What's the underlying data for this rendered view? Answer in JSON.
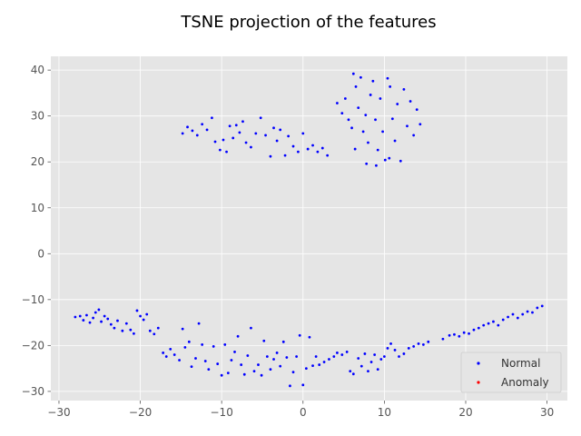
{
  "chart_data": {
    "type": "scatter",
    "title": "TSNE projection of the features",
    "xlabel": "",
    "ylabel": "",
    "xlim": [
      -31,
      32.5
    ],
    "ylim": [
      -32,
      43
    ],
    "xticks": [
      -30,
      -20,
      -10,
      0,
      10,
      20,
      30
    ],
    "yticks": [
      -30,
      -20,
      -10,
      0,
      10,
      20,
      30,
      40
    ],
    "grid": true,
    "style": "ggplot",
    "legend_position": "lower-right",
    "series": [
      {
        "name": "Normal",
        "color": "#0000ff",
        "points": [
          [
            -28,
            -13.8
          ],
          [
            -27.4,
            -13.6
          ],
          [
            -27,
            -14.5
          ],
          [
            -26.6,
            -13.4
          ],
          [
            -26.2,
            -15
          ],
          [
            -25.8,
            -14
          ],
          [
            -25.5,
            -12.8
          ],
          [
            -25.1,
            -12.2
          ],
          [
            -24.8,
            -14.8
          ],
          [
            -24.4,
            -13.6
          ],
          [
            -24,
            -14.2
          ],
          [
            -23.6,
            -15.4
          ],
          [
            -23.2,
            -16.2
          ],
          [
            -22.8,
            -14.6
          ],
          [
            -22.2,
            -16.8
          ],
          [
            -21.7,
            -15.2
          ],
          [
            -21.2,
            -16.6
          ],
          [
            -20.8,
            -17.4
          ],
          [
            -20.4,
            -12.4
          ],
          [
            -20,
            -13.6
          ],
          [
            -19.6,
            -14.4
          ],
          [
            -19.2,
            -13.2
          ],
          [
            -18.8,
            -16.8
          ],
          [
            -18.3,
            -17.5
          ],
          [
            -17.8,
            -16.2
          ],
          [
            -17.2,
            -21.6
          ],
          [
            -16.8,
            -22.4
          ],
          [
            -16.3,
            -20.8
          ],
          [
            -15.8,
            -22
          ],
          [
            -15.2,
            -23.2
          ],
          [
            -14.8,
            -16.4
          ],
          [
            -14.5,
            -20.4
          ],
          [
            -14,
            -19.2
          ],
          [
            -13.7,
            -24.6
          ],
          [
            -13.2,
            -22.8
          ],
          [
            -12.8,
            -15.2
          ],
          [
            -12.4,
            -19.8
          ],
          [
            -12,
            -23.4
          ],
          [
            -11.6,
            -25.2
          ],
          [
            -11,
            -20.2
          ],
          [
            -10.5,
            -24
          ],
          [
            -10,
            -26.5
          ],
          [
            -9.6,
            -19.8
          ],
          [
            -9.2,
            -26
          ],
          [
            -8.8,
            -23.2
          ],
          [
            -8.4,
            -21.4
          ],
          [
            -8,
            -18
          ],
          [
            -7.6,
            -24.2
          ],
          [
            -7.2,
            -26.3
          ],
          [
            -6.8,
            -22.2
          ],
          [
            -6.4,
            -16.2
          ],
          [
            -6,
            -25.6
          ],
          [
            -5.5,
            -24.2
          ],
          [
            -5.1,
            -26.5
          ],
          [
            -4.8,
            -19
          ],
          [
            -4.4,
            -22.4
          ],
          [
            -4,
            -25.2
          ],
          [
            -3.6,
            -23
          ],
          [
            -3.2,
            -21.6
          ],
          [
            -2.8,
            -24.5
          ],
          [
            -2.4,
            -19.2
          ],
          [
            -2,
            -22.6
          ],
          [
            -1.6,
            -28.8
          ],
          [
            -1.2,
            -25.8
          ],
          [
            -0.8,
            -22.4
          ],
          [
            -0.4,
            -17.8
          ],
          [
            0,
            -28.6
          ],
          [
            0.4,
            -25
          ],
          [
            0.8,
            -18.2
          ],
          [
            1.2,
            -24.4
          ],
          [
            1.6,
            -22.4
          ],
          [
            2,
            -24.2
          ],
          [
            2.6,
            -23.6
          ],
          [
            3.2,
            -23
          ],
          [
            3.8,
            -22.4
          ],
          [
            4.2,
            -21.6
          ],
          [
            4.8,
            -22
          ],
          [
            5.4,
            -21.4
          ],
          [
            5.8,
            -25.6
          ],
          [
            6.2,
            -26.2
          ],
          [
            6.8,
            -22.8
          ],
          [
            7.2,
            -24.5
          ],
          [
            7.6,
            -21.8
          ],
          [
            8,
            -25.6
          ],
          [
            8.4,
            -23.6
          ],
          [
            8.8,
            -22
          ],
          [
            9.2,
            -25.2
          ],
          [
            9.6,
            -23
          ],
          [
            10,
            -22.4
          ],
          [
            10.4,
            -20.6
          ],
          [
            10.8,
            -19.6
          ],
          [
            11.3,
            -21
          ],
          [
            11.8,
            -22.4
          ],
          [
            12.4,
            -21.8
          ],
          [
            13,
            -20.6
          ],
          [
            13.6,
            -20.2
          ],
          [
            14.2,
            -19.6
          ],
          [
            14.8,
            -19.8
          ],
          [
            15.4,
            -19.2
          ],
          [
            17.2,
            -18.6
          ],
          [
            18,
            -17.8
          ],
          [
            18.6,
            -17.6
          ],
          [
            19.2,
            -18
          ],
          [
            19.8,
            -17.2
          ],
          [
            20.4,
            -17.4
          ],
          [
            21,
            -16.6
          ],
          [
            21.6,
            -16.2
          ],
          [
            22.2,
            -15.6
          ],
          [
            22.8,
            -15.2
          ],
          [
            23.4,
            -14.8
          ],
          [
            24,
            -15.6
          ],
          [
            24.6,
            -14.4
          ],
          [
            25.2,
            -13.8
          ],
          [
            25.8,
            -13.2
          ],
          [
            26.4,
            -14
          ],
          [
            27,
            -13.2
          ],
          [
            27.6,
            -12.6
          ],
          [
            28.2,
            -12.8
          ],
          [
            28.8,
            -11.8
          ],
          [
            29.4,
            -11.4
          ],
          [
            -14.8,
            26.2
          ],
          [
            -14.2,
            27.6
          ],
          [
            -13.6,
            26.8
          ],
          [
            -13,
            25.8
          ],
          [
            -12.4,
            28.2
          ],
          [
            -11.8,
            27
          ],
          [
            -11.2,
            29.6
          ],
          [
            -10.8,
            24.4
          ],
          [
            -10.2,
            22.6
          ],
          [
            -9.8,
            24.8
          ],
          [
            -9.4,
            22.2
          ],
          [
            -9,
            27.8
          ],
          [
            -8.6,
            25.2
          ],
          [
            -8.2,
            28
          ],
          [
            -7.8,
            26.4
          ],
          [
            -7.4,
            28.8
          ],
          [
            -7,
            24.2
          ],
          [
            -6.4,
            23.2
          ],
          [
            -5.8,
            26.2
          ],
          [
            -5.2,
            29.6
          ],
          [
            -4.6,
            25.8
          ],
          [
            -4,
            21.2
          ],
          [
            -3.6,
            27.4
          ],
          [
            -3.2,
            24.6
          ],
          [
            -2.8,
            27
          ],
          [
            -2.2,
            21.4
          ],
          [
            -1.8,
            25.6
          ],
          [
            -1.2,
            23.4
          ],
          [
            -0.6,
            22.2
          ],
          [
            0,
            26.2
          ],
          [
            0.6,
            22.8
          ],
          [
            1.2,
            23.6
          ],
          [
            1.8,
            22.2
          ],
          [
            2.4,
            23
          ],
          [
            3,
            21.4
          ],
          [
            4.2,
            32.8
          ],
          [
            4.8,
            30.6
          ],
          [
            5.2,
            33.8
          ],
          [
            5.6,
            29.2
          ],
          [
            6,
            27.4
          ],
          [
            6.2,
            39.2
          ],
          [
            6.5,
            36.4
          ],
          [
            6.8,
            31.8
          ],
          [
            7.1,
            38.4
          ],
          [
            7.4,
            26.6
          ],
          [
            7.7,
            30.2
          ],
          [
            8,
            24.2
          ],
          [
            8.3,
            34.6
          ],
          [
            8.6,
            37.6
          ],
          [
            8.9,
            29.2
          ],
          [
            9.2,
            22.6
          ],
          [
            9.5,
            33.8
          ],
          [
            9.8,
            26.6
          ],
          [
            10.1,
            20.4
          ],
          [
            10.4,
            38.2
          ],
          [
            10.7,
            36.4
          ],
          [
            11,
            29.4
          ],
          [
            11.3,
            24.6
          ],
          [
            11.6,
            32.6
          ],
          [
            12,
            20.2
          ],
          [
            12.4,
            35.8
          ],
          [
            12.8,
            27.8
          ],
          [
            13.2,
            33.2
          ],
          [
            13.6,
            25.8
          ],
          [
            14,
            31.4
          ],
          [
            14.4,
            28.2
          ],
          [
            7.8,
            19.6
          ],
          [
            9,
            19.2
          ],
          [
            10.6,
            20.8
          ],
          [
            6.4,
            22.8
          ]
        ]
      },
      {
        "name": "Anomaly",
        "color": "#ff0000",
        "points": []
      }
    ]
  }
}
